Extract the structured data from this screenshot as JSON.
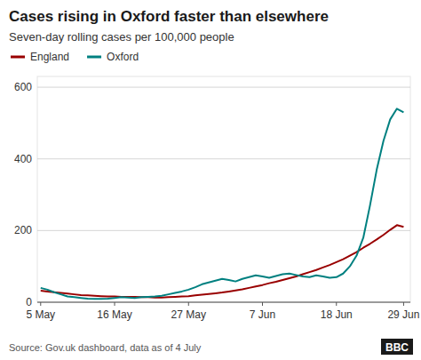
{
  "chart_data": {
    "type": "line",
    "title": "Cases rising in Oxford faster than elsewhere",
    "subtitle": "Seven-day rolling cases per 100,000 people",
    "source": "Source: Gov.uk dashboard, data as of  4 July",
    "annotations": [
      "BBC"
    ],
    "x": [
      0,
      1,
      2,
      3,
      4,
      5,
      6,
      7,
      8,
      9,
      10,
      11,
      12,
      13,
      14,
      15,
      16,
      17,
      18,
      19,
      20,
      21,
      22,
      23,
      24,
      25,
      26,
      27,
      28,
      29,
      30,
      31,
      32,
      33,
      34,
      35,
      36,
      37,
      38,
      39,
      40,
      41,
      42,
      43,
      44,
      45,
      46,
      47,
      48,
      49,
      50,
      51,
      52,
      53,
      54
    ],
    "xlim": [
      -0.5,
      55
    ],
    "xticks": [
      {
        "value": 0,
        "label": "5 May"
      },
      {
        "value": 11,
        "label": "16 May"
      },
      {
        "value": 22,
        "label": "27 May"
      },
      {
        "value": 33,
        "label": "7 Jun"
      },
      {
        "value": 44,
        "label": "18 Jun"
      },
      {
        "value": 54,
        "label": "29 Jun"
      }
    ],
    "ylim": [
      0,
      630
    ],
    "yticks": [
      0,
      200,
      400,
      600
    ],
    "grid": true,
    "legend": "top",
    "series": [
      {
        "name": "England",
        "color": "#990000",
        "values": [
          32,
          30,
          28,
          26,
          24,
          22,
          20,
          19,
          18,
          17,
          16,
          16,
          15,
          15,
          15,
          14,
          14,
          13,
          13,
          14,
          15,
          16,
          17,
          19,
          21,
          23,
          25,
          27,
          30,
          33,
          36,
          40,
          44,
          48,
          53,
          57,
          62,
          67,
          72,
          78,
          84,
          90,
          97,
          104,
          112,
          120,
          130,
          140,
          152,
          163,
          175,
          188,
          202,
          215,
          210
        ]
      },
      {
        "name": "Oxford",
        "color": "#008080",
        "values": [
          40,
          35,
          28,
          22,
          16,
          14,
          12,
          10,
          9,
          9,
          10,
          12,
          14,
          13,
          12,
          14,
          15,
          16,
          18,
          22,
          26,
          30,
          35,
          42,
          50,
          55,
          60,
          65,
          62,
          58,
          65,
          70,
          75,
          72,
          68,
          73,
          78,
          80,
          76,
          72,
          70,
          75,
          72,
          68,
          70,
          80,
          100,
          130,
          180,
          270,
          370,
          450,
          510,
          540,
          530
        ]
      }
    ]
  }
}
